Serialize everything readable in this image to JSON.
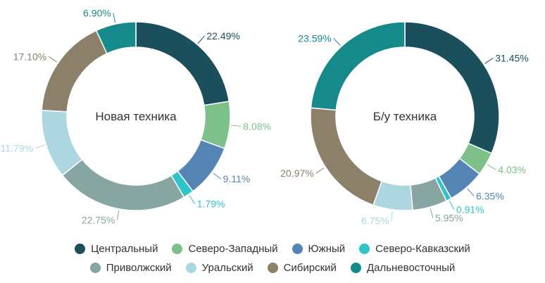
{
  "chart_data": [
    {
      "type": "donut",
      "title": "Новая техника",
      "labels": [
        "22.49%",
        "8.08%",
        "9.11%",
        "1.79%",
        "22.75%",
        "11.79%",
        "17.10%",
        "6.90%"
      ],
      "values": [
        22.49,
        8.08,
        9.11,
        1.79,
        22.75,
        11.79,
        17.1,
        6.9
      ],
      "categories": [
        "Центральный",
        "Северо-Западный",
        "Южный",
        "Северо-Кавказский",
        "Приволжский",
        "Уральский",
        "Сибирский",
        "Дальневосточный"
      ]
    },
    {
      "type": "donut",
      "title": "Б/у техника",
      "labels": [
        "31.45%",
        "4.03%",
        "6.35%",
        "0.91%",
        "5.95%",
        "6.75%",
        "20.97%",
        "23.59%"
      ],
      "values": [
        31.45,
        4.03,
        6.35,
        0.91,
        5.95,
        6.75,
        20.97,
        23.59
      ],
      "categories": [
        "Центральный",
        "Северо-Западный",
        "Южный",
        "Северо-Кавказский",
        "Приволжский",
        "Уральский",
        "Сибирский",
        "Дальневосточный"
      ]
    }
  ],
  "legend": [
    {
      "name": "Центральный",
      "color": "#1b4f5c"
    },
    {
      "name": "Северо-Западный",
      "color": "#7dc08a"
    },
    {
      "name": "Южный",
      "color": "#5585b5"
    },
    {
      "name": "Северо-Кавказский",
      "color": "#2ec4c9"
    },
    {
      "name": "Приволжский",
      "color": "#87a5a1"
    },
    {
      "name": "Уральский",
      "color": "#acd6e0"
    },
    {
      "name": "Сибирский",
      "color": "#8c806a"
    },
    {
      "name": "Дальневосточный",
      "color": "#168a8a"
    }
  ]
}
